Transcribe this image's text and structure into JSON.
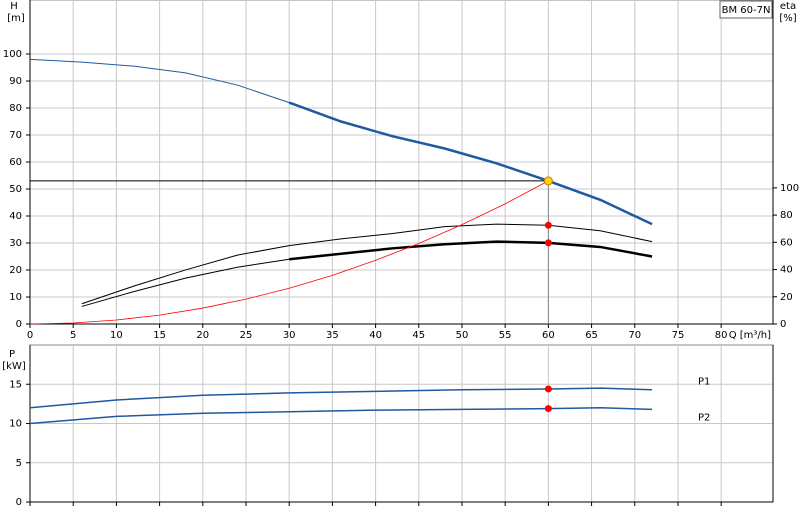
{
  "chart_data": [
    {
      "type": "line",
      "title": "BM 60-7N",
      "xlabel": "Q [m³/h]",
      "ylabel": "H",
      "yunit": "[m]",
      "y2label": "eta",
      "y2unit": "[%]",
      "xlim": [
        0,
        86
      ],
      "xticks": [
        0,
        5,
        10,
        15,
        20,
        25,
        30,
        35,
        40,
        45,
        50,
        55,
        60,
        65,
        70,
        75,
        80
      ],
      "ylim": [
        0,
        120
      ],
      "yticks": [
        0,
        10,
        20,
        30,
        40,
        50,
        60,
        70,
        80,
        90,
        100
      ],
      "y2lim": [
        0,
        238
      ],
      "y2ticks": [
        0,
        20,
        40,
        60,
        80,
        100
      ],
      "grid": true,
      "series": [
        {
          "color": "#1f5aa0",
          "width": 1,
          "x": [
            0,
            6,
            12,
            18,
            24,
            30
          ],
          "values": [
            98,
            97,
            95.5,
            93,
            88.5,
            82
          ]
        },
        {
          "color": "#1f5aa0",
          "width": 2.5,
          "x": [
            30,
            36,
            42,
            48,
            54,
            60,
            66,
            72
          ],
          "values": [
            82,
            75,
            69.5,
            65,
            59.5,
            53,
            46,
            37
          ]
        },
        {
          "color": "#000000",
          "width": 1,
          "axis": "y2",
          "x": [
            6,
            12,
            18,
            24,
            30,
            36,
            42,
            48,
            54,
            60,
            66,
            72
          ],
          "values": [
            14.9,
            27.8,
            39.7,
            50.6,
            57.6,
            62.5,
            66.5,
            71.5,
            73.4,
            72.5,
            68.5,
            60.5
          ]
        },
        {
          "color": "#000000",
          "width": 1,
          "axis": "y2",
          "x": [
            6,
            12,
            18,
            24,
            30
          ],
          "values": [
            12.9,
            23.8,
            33.7,
            41.7,
            47.6
          ]
        },
        {
          "color": "#000000",
          "width": 2.5,
          "axis": "y2",
          "x": [
            30,
            36,
            42,
            48,
            54,
            60,
            66,
            72
          ],
          "values": [
            47.6,
            51.6,
            55.6,
            58.6,
            60.5,
            59.6,
            56.6,
            49.6
          ]
        },
        {
          "color": "#ff0000",
          "width": 0.8,
          "x": [
            0,
            5,
            10,
            15,
            20,
            25,
            30,
            35,
            40,
            45,
            50,
            55,
            60
          ],
          "values": [
            0,
            0.37,
            1.47,
            3.3,
            5.9,
            9.2,
            13.25,
            18,
            23.6,
            29.8,
            36.8,
            44.5,
            53
          ]
        }
      ],
      "duty_point": {
        "x": 60,
        "y": 53,
        "color": "#ffd700"
      },
      "markers": [
        {
          "x": 60,
          "y": 72.5,
          "axis": "y2",
          "color": "#ff0000"
        },
        {
          "x": 60,
          "y": 59.6,
          "axis": "y2",
          "color": "#ff0000"
        }
      ]
    },
    {
      "type": "line",
      "ylabel": "P",
      "yunit": "[kW]",
      "xlim": [
        0,
        86
      ],
      "xticks": [
        0,
        5,
        10,
        15,
        20,
        25,
        30,
        35,
        40,
        45,
        50,
        55,
        60,
        65,
        70,
        75,
        80
      ],
      "ylim": [
        0,
        20
      ],
      "yticks": [
        0,
        5,
        10,
        15
      ],
      "grid": true,
      "series": [
        {
          "name": "P1",
          "color": "#1f5aa0",
          "width": 1.5,
          "x": [
            0,
            10,
            20,
            30,
            40,
            50,
            60,
            66,
            72
          ],
          "values": [
            12,
            13,
            13.6,
            13.9,
            14.1,
            14.3,
            14.4,
            14.5,
            14.3
          ]
        },
        {
          "name": "P2",
          "color": "#1f5aa0",
          "width": 1.5,
          "x": [
            0,
            10,
            20,
            30,
            40,
            50,
            60,
            66,
            72
          ],
          "values": [
            10,
            10.9,
            11.3,
            11.5,
            11.7,
            11.8,
            11.9,
            12.0,
            11.8
          ]
        }
      ],
      "markers": [
        {
          "x": 60,
          "y": 14.4,
          "color": "#ff0000"
        },
        {
          "x": 60,
          "y": 11.9,
          "color": "#ff0000"
        }
      ]
    }
  ]
}
